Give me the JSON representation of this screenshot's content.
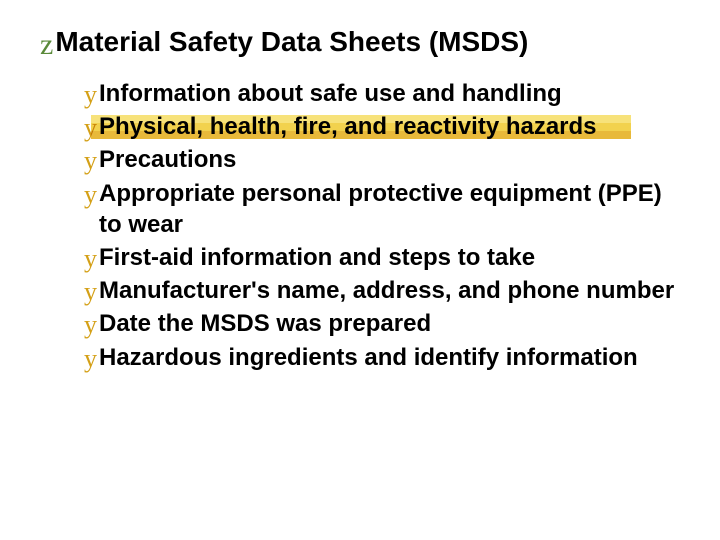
{
  "title_bullet_color": "#5a8a3a",
  "item_bullet_color": "#d4a017",
  "stripe_colors": [
    "#f7e27a",
    "#f2d24e",
    "#e8b93a"
  ],
  "title": "Material Safety Data Sheets (MSDS)",
  "items": [
    {
      "text": "Information about safe use and handling",
      "striped": false
    },
    {
      "text": "Physical, health, fire, and reactivity hazards",
      "striped": true,
      "stripe_width": 540
    },
    {
      "text": "Precautions",
      "striped": false
    },
    {
      "text": "Appropriate personal protective equipment (PPE) to wear",
      "striped": false
    },
    {
      "text": "First-aid information and steps to take",
      "striped": false
    },
    {
      "text": "Manufacturer's name, address, and phone number",
      "striped": false
    },
    {
      "text": "Date the MSDS was prepared",
      "striped": false
    },
    {
      "text": "Hazardous ingredients and identify information",
      "striped": false
    }
  ]
}
